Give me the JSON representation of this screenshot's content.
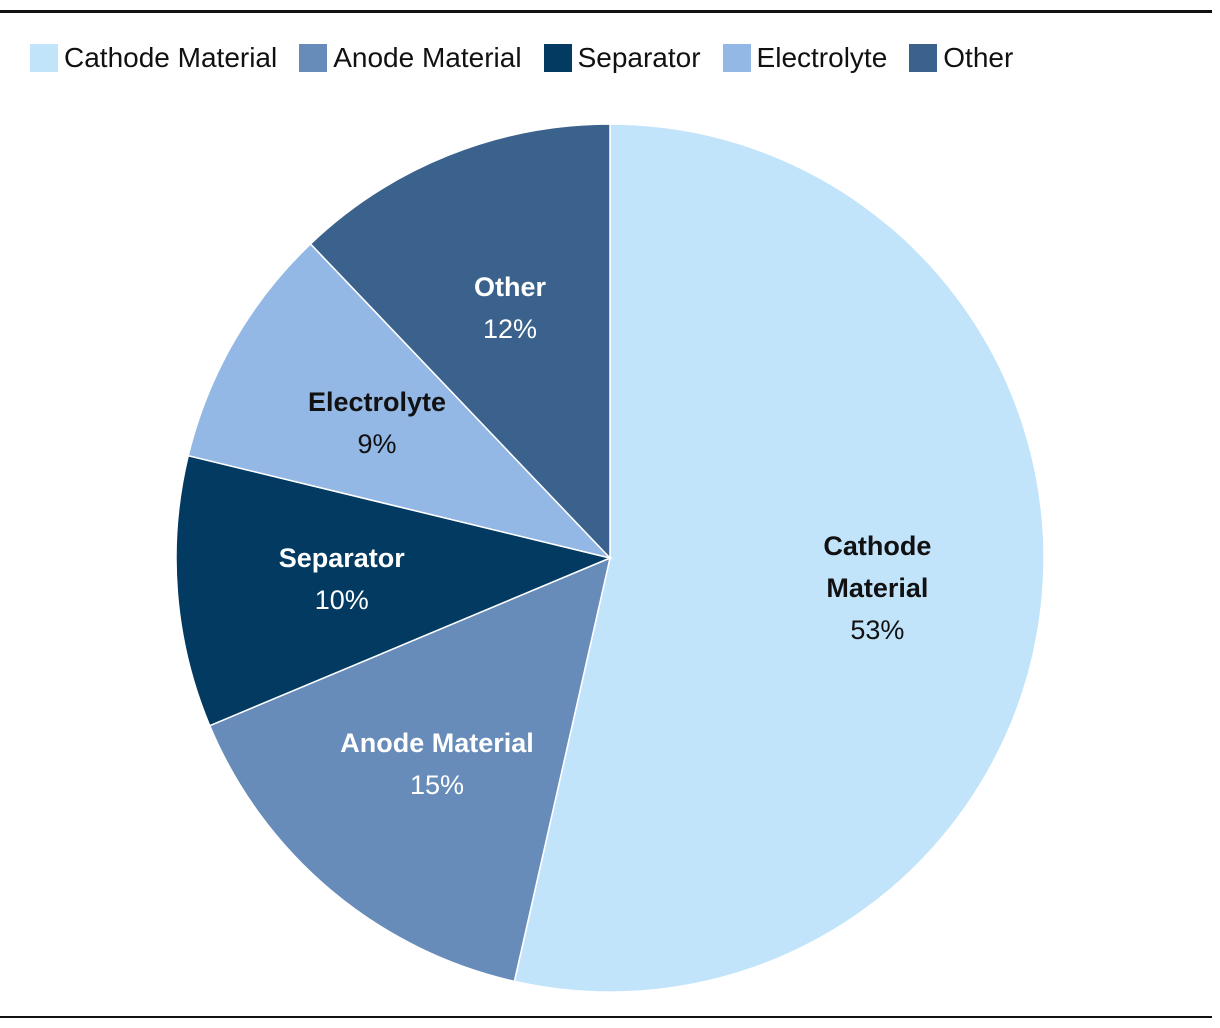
{
  "chart_data": {
    "type": "pie",
    "categories": [
      "Cathode Material",
      "Anode Material",
      "Separator",
      "Electrolyte",
      "Other"
    ],
    "values": [
      53,
      15,
      10,
      9,
      12
    ],
    "value_labels": [
      "53%",
      "15%",
      "10%",
      "9%",
      "12%"
    ],
    "colors": [
      "#c1e4fb",
      "#678cba",
      "#023a62",
      "#94b8e6",
      "#3a628c"
    ],
    "legend": "top-left"
  }
}
